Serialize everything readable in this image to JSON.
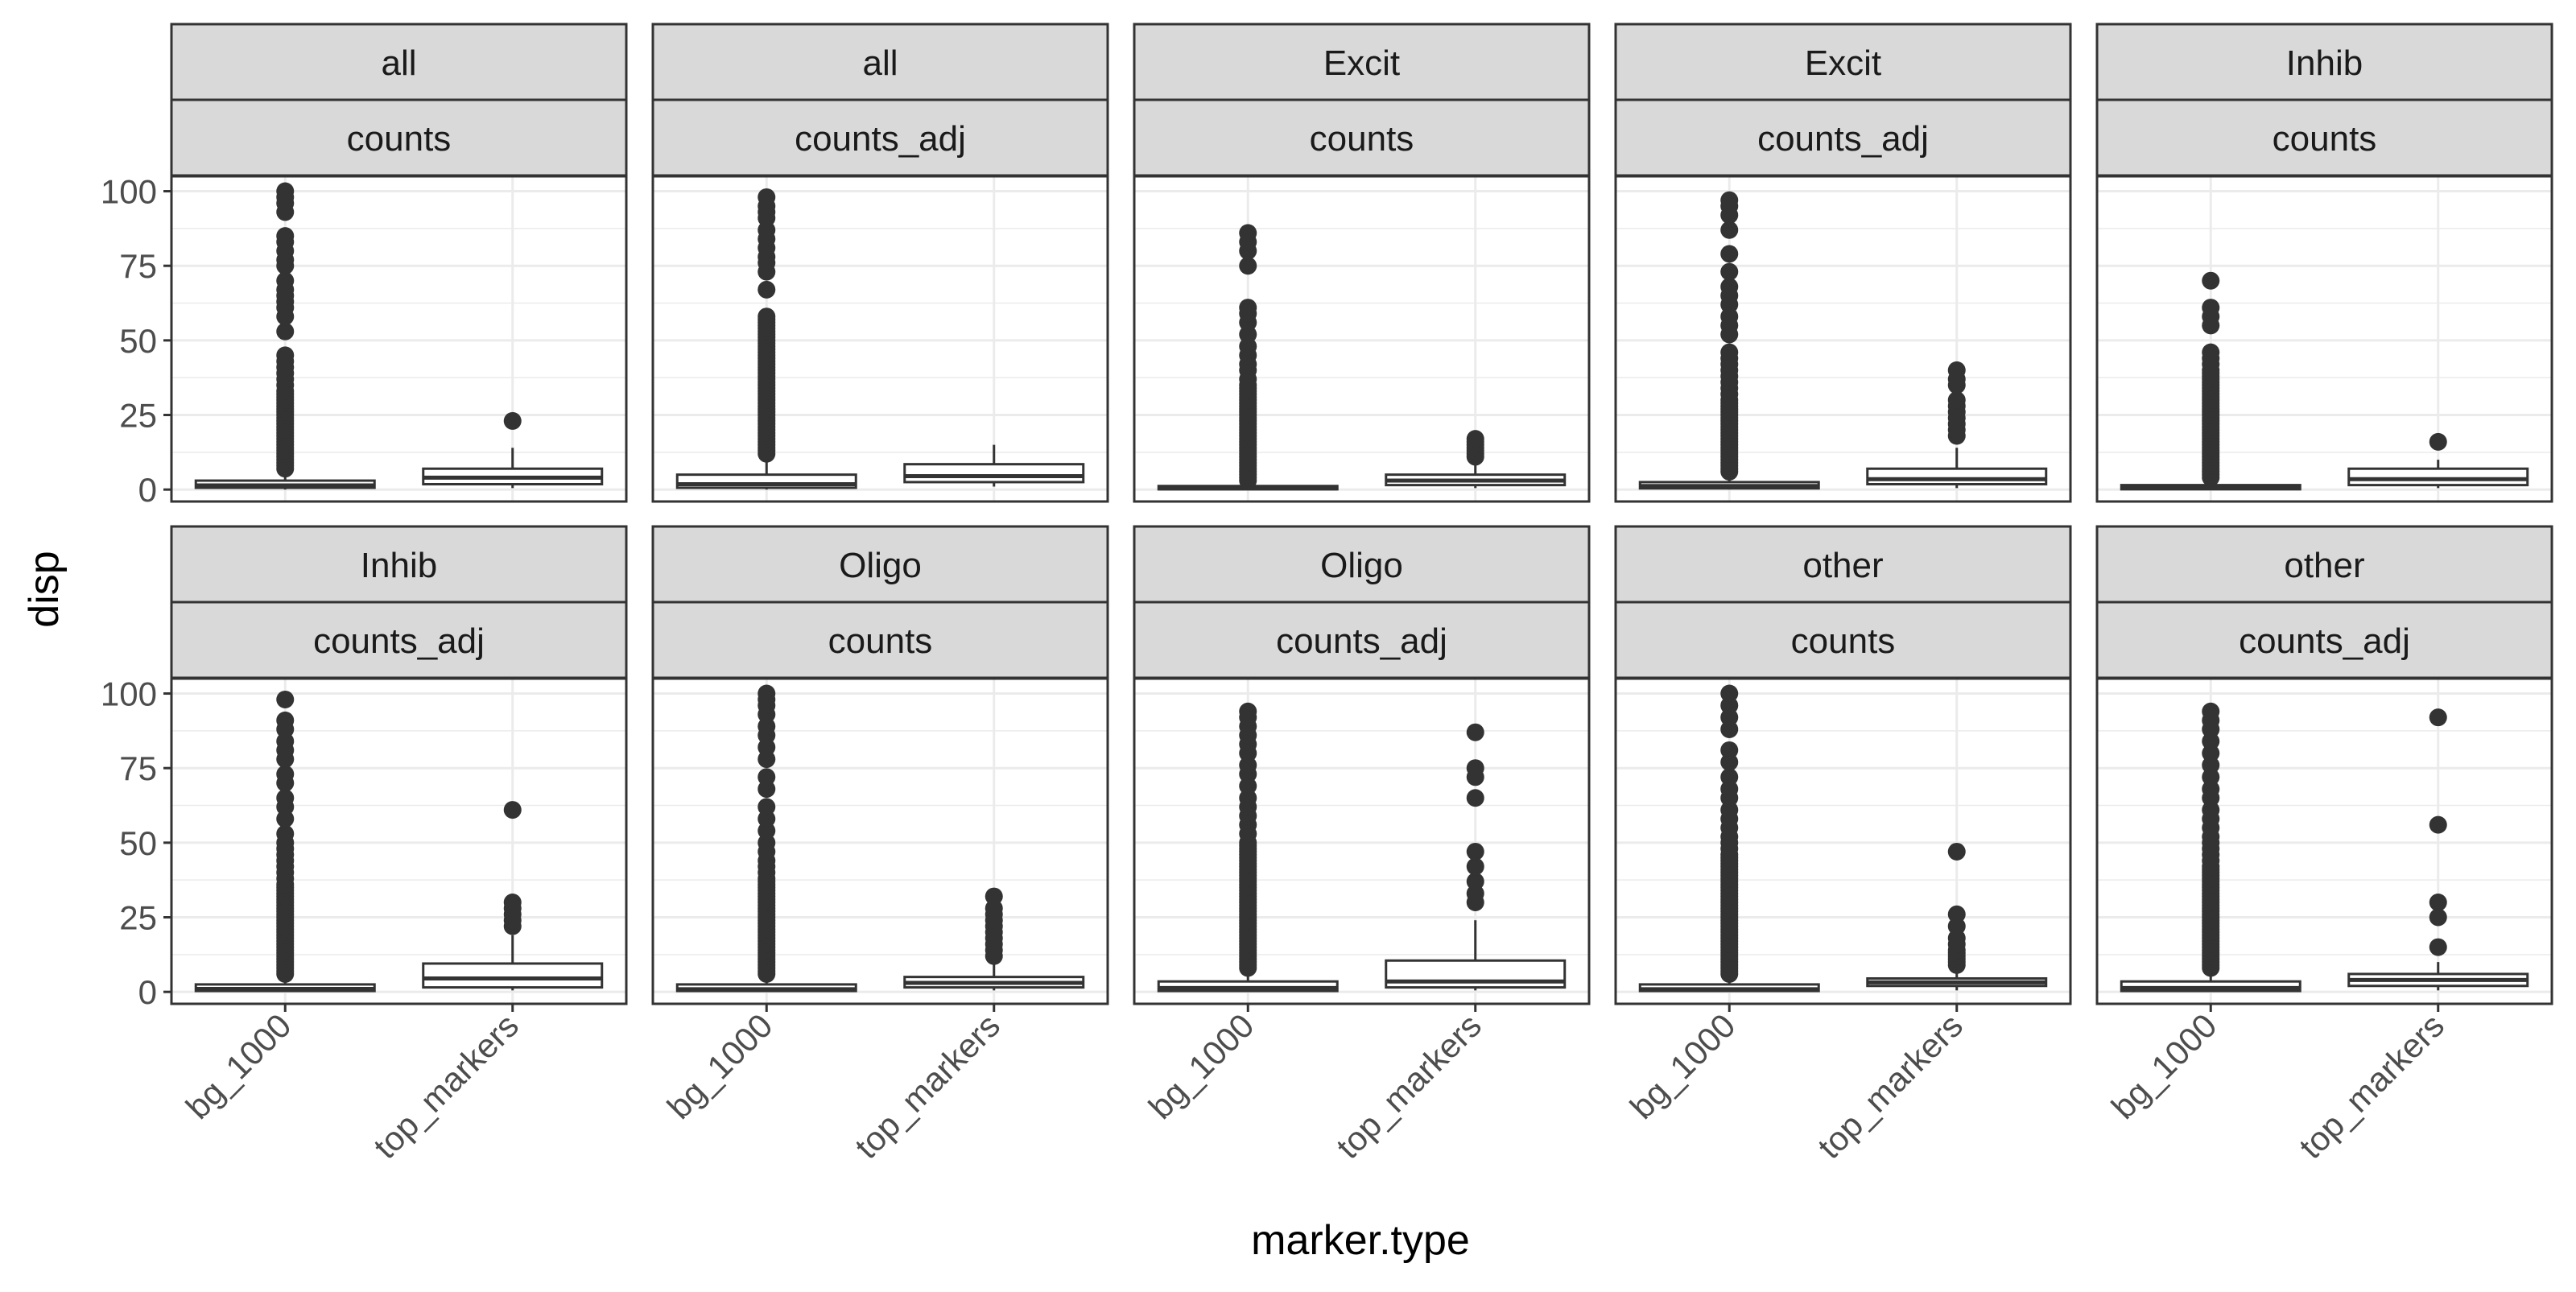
{
  "chart_data": {
    "type": "box",
    "facet_layout": "2 rows x 5 columns",
    "xlabel": "marker.type",
    "ylabel": "disp",
    "x_ticks": [
      "bg_1000",
      "top_markers"
    ],
    "y_ticks": [
      0,
      25,
      50,
      75,
      100
    ],
    "ylim": [
      -4,
      105
    ],
    "grid": true,
    "colors": {
      "strip_fill": "#d9d9d9",
      "box_fill": "#ffffff",
      "stroke": "#333333",
      "grid": "#ebebeb",
      "tick_text": "#4d4d4d"
    },
    "facets": [
      {
        "strip_top": "all",
        "strip_bottom": "counts",
        "boxes": [
          {
            "category": "bg_1000",
            "q1": 0.6,
            "median": 1.4,
            "q3": 3,
            "whisker_low": 0,
            "whisker_high": 6,
            "outliers": [
              7,
              8,
              9,
              10,
              11,
              12,
              13,
              14,
              15,
              16,
              17,
              18,
              19,
              20,
              21,
              22,
              23,
              24,
              25,
              26,
              27,
              28,
              29,
              30,
              31,
              32,
              33,
              35,
              37,
              39,
              41,
              43,
              45,
              53,
              58,
              61,
              63,
              65,
              67,
              70,
              75,
              77,
              80,
              83,
              85,
              93,
              96,
              98,
              100
            ]
          },
          {
            "category": "top_markers",
            "q1": 1.8,
            "median": 4,
            "q3": 7,
            "whisker_low": 0.5,
            "whisker_high": 14,
            "outliers": [
              23
            ]
          }
        ]
      },
      {
        "strip_top": "all",
        "strip_bottom": "counts_adj",
        "boxes": [
          {
            "category": "bg_1000",
            "q1": 0.6,
            "median": 1.8,
            "q3": 5,
            "whisker_low": 0,
            "whisker_high": 11.5,
            "outliers": [
              12,
              13,
              14,
              15,
              16,
              17,
              18,
              19,
              20,
              21,
              22,
              23,
              24,
              25,
              26,
              27,
              28,
              29,
              30,
              31,
              32,
              33,
              34,
              35,
              36,
              37,
              38,
              39,
              40,
              41,
              42,
              43,
              44,
              45,
              46,
              47,
              48,
              49,
              50,
              51,
              52,
              53,
              54,
              55,
              56,
              57,
              58,
              67,
              73,
              76,
              78,
              81,
              84,
              87,
              91,
              93,
              95,
              98
            ]
          },
          {
            "category": "top_markers",
            "q1": 2.5,
            "median": 4.5,
            "q3": 8.5,
            "whisker_low": 1,
            "whisker_high": 15,
            "outliers": []
          }
        ]
      },
      {
        "strip_top": "Excit",
        "strip_bottom": "counts",
        "boxes": [
          {
            "category": "bg_1000",
            "q1": 0.1,
            "median": 0.4,
            "q3": 1.2,
            "whisker_low": 0,
            "whisker_high": 2.5,
            "outliers": [
              3,
              4,
              5,
              6,
              7,
              8,
              9,
              10,
              11,
              12,
              13,
              14,
              15,
              16,
              17,
              18,
              19,
              20,
              21,
              22,
              23,
              24,
              25,
              26,
              27,
              28,
              29,
              30,
              31,
              32,
              33,
              34,
              35,
              37,
              40,
              42,
              45,
              48,
              52,
              56,
              59,
              61,
              75,
              80,
              83,
              86
            ]
          },
          {
            "category": "top_markers",
            "q1": 1.5,
            "median": 3,
            "q3": 5,
            "whisker_low": 0.5,
            "whisker_high": 10,
            "outliers": [
              11,
              12,
              13,
              14,
              15,
              16,
              17
            ]
          }
        ]
      },
      {
        "strip_top": "Excit",
        "strip_bottom": "counts_adj",
        "boxes": [
          {
            "category": "bg_1000",
            "q1": 0.4,
            "median": 1.2,
            "q3": 2.5,
            "whisker_low": 0,
            "whisker_high": 5.5,
            "outliers": [
              6,
              7,
              8,
              9,
              10,
              11,
              12,
              13,
              14,
              15,
              16,
              17,
              18,
              19,
              20,
              21,
              22,
              23,
              24,
              25,
              26,
              27,
              28,
              29,
              30,
              32,
              34,
              36,
              38,
              40,
              42,
              44,
              46,
              52,
              55,
              58,
              62,
              65,
              68,
              73,
              79,
              87,
              92,
              95,
              97
            ]
          },
          {
            "category": "top_markers",
            "q1": 1.8,
            "median": 3.5,
            "q3": 7,
            "whisker_low": 0.5,
            "whisker_high": 14,
            "outliers": [
              18,
              20,
              22,
              24,
              26,
              28,
              30,
              35,
              37,
              40
            ]
          }
        ]
      },
      {
        "strip_top": "Inhib",
        "strip_bottom": "counts",
        "boxes": [
          {
            "category": "bg_1000",
            "q1": 0.1,
            "median": 0.5,
            "q3": 1.5,
            "whisker_low": 0,
            "whisker_high": 3,
            "outliers": [
              4,
              5,
              6,
              7,
              8,
              9,
              10,
              11,
              12,
              13,
              14,
              15,
              16,
              17,
              18,
              19,
              20,
              21,
              22,
              23,
              24,
              25,
              26,
              27,
              28,
              29,
              30,
              31,
              32,
              33,
              34,
              35,
              36,
              37,
              38,
              39,
              40,
              42,
              44,
              46,
              55,
              58,
              61,
              70
            ]
          },
          {
            "category": "top_markers",
            "q1": 1.5,
            "median": 3.5,
            "q3": 7,
            "whisker_low": 0.5,
            "whisker_high": 10,
            "outliers": [
              16
            ]
          }
        ]
      },
      {
        "strip_top": "Inhib",
        "strip_bottom": "counts_adj",
        "boxes": [
          {
            "category": "bg_1000",
            "q1": 0.3,
            "median": 1,
            "q3": 2.5,
            "whisker_low": 0,
            "whisker_high": 5,
            "outliers": [
              6,
              7,
              8,
              9,
              10,
              11,
              12,
              13,
              14,
              15,
              16,
              17,
              18,
              19,
              20,
              21,
              22,
              23,
              24,
              25,
              26,
              27,
              28,
              29,
              30,
              31,
              32,
              33,
              34,
              35,
              36,
              38,
              40,
              42,
              44,
              46,
              48,
              50,
              53,
              58,
              62,
              65,
              70,
              73,
              78,
              81,
              84,
              88,
              91,
              98
            ]
          },
          {
            "category": "top_markers",
            "q1": 1.5,
            "median": 4.5,
            "q3": 9.5,
            "whisker_low": 0.5,
            "whisker_high": 19,
            "outliers": [
              22,
              24,
              26,
              28,
              30,
              61
            ]
          }
        ]
      },
      {
        "strip_top": "Oligo",
        "strip_bottom": "counts",
        "boxes": [
          {
            "category": "bg_1000",
            "q1": 0.3,
            "median": 0.9,
            "q3": 2.5,
            "whisker_low": 0,
            "whisker_high": 5,
            "outliers": [
              6,
              7,
              8,
              9,
              10,
              11,
              12,
              13,
              14,
              15,
              16,
              17,
              18,
              19,
              20,
              21,
              22,
              23,
              24,
              25,
              26,
              27,
              28,
              29,
              30,
              31,
              32,
              33,
              34,
              35,
              36,
              37,
              38,
              40,
              42,
              44,
              47,
              50,
              54,
              58,
              62,
              68,
              72,
              78,
              82,
              86,
              89,
              93,
              96,
              98,
              100
            ]
          },
          {
            "category": "top_markers",
            "q1": 1.5,
            "median": 3,
            "q3": 5,
            "whisker_low": 0.5,
            "whisker_high": 10,
            "outliers": [
              12,
              14,
              16,
              18,
              20,
              22,
              24,
              26,
              28,
              32
            ]
          }
        ]
      },
      {
        "strip_top": "Oligo",
        "strip_bottom": "counts_adj",
        "boxes": [
          {
            "category": "bg_1000",
            "q1": 0.3,
            "median": 1.3,
            "q3": 3.5,
            "whisker_low": 0,
            "whisker_high": 7.5,
            "outliers": [
              8,
              9,
              10,
              11,
              12,
              13,
              14,
              15,
              16,
              17,
              18,
              19,
              20,
              21,
              22,
              23,
              24,
              25,
              26,
              27,
              28,
              29,
              30,
              31,
              32,
              33,
              34,
              35,
              36,
              37,
              38,
              39,
              40,
              41,
              42,
              43,
              44,
              45,
              46,
              47,
              48,
              49,
              50,
              53,
              56,
              59,
              62,
              65,
              69,
              73,
              76,
              80,
              83,
              86,
              89,
              92,
              94
            ]
          },
          {
            "category": "top_markers",
            "q1": 1.5,
            "median": 3.5,
            "q3": 10.5,
            "whisker_low": 0.5,
            "whisker_high": 24,
            "outliers": [
              30,
              33,
              37,
              42,
              47,
              65,
              72,
              75,
              87
            ]
          }
        ]
      },
      {
        "strip_top": "other",
        "strip_bottom": "counts",
        "boxes": [
          {
            "category": "bg_1000",
            "q1": 0.3,
            "median": 0.9,
            "q3": 2.5,
            "whisker_low": 0,
            "whisker_high": 5.5,
            "outliers": [
              6,
              7,
              8,
              9,
              10,
              11,
              12,
              13,
              14,
              15,
              16,
              17,
              18,
              19,
              20,
              21,
              22,
              23,
              24,
              25,
              26,
              27,
              28,
              29,
              30,
              31,
              32,
              33,
              34,
              35,
              36,
              37,
              38,
              39,
              40,
              41,
              42,
              43,
              44,
              45,
              46,
              48,
              50,
              52,
              55,
              58,
              61,
              65,
              68,
              72,
              77,
              81,
              88,
              92,
              96,
              100
            ]
          },
          {
            "category": "top_markers",
            "q1": 2,
            "median": 3.2,
            "q3": 4.5,
            "whisker_low": 0.5,
            "whisker_high": 8,
            "outliers": [
              9,
              10,
              11,
              12,
              13,
              14,
              16,
              18,
              22,
              26,
              47
            ]
          }
        ]
      },
      {
        "strip_top": "other",
        "strip_bottom": "counts_adj",
        "boxes": [
          {
            "category": "bg_1000",
            "q1": 0.3,
            "median": 1.3,
            "q3": 3.5,
            "whisker_low": 0,
            "whisker_high": 7,
            "outliers": [
              8,
              9,
              10,
              11,
              12,
              13,
              14,
              15,
              16,
              17,
              18,
              19,
              20,
              21,
              22,
              23,
              24,
              25,
              26,
              27,
              28,
              29,
              30,
              31,
              32,
              33,
              34,
              35,
              36,
              37,
              38,
              39,
              40,
              41,
              42,
              44,
              46,
              48,
              50,
              52,
              55,
              58,
              61,
              65,
              68,
              72,
              76,
              80,
              84,
              88,
              91,
              94
            ]
          },
          {
            "category": "top_markers",
            "q1": 2,
            "median": 4,
            "q3": 6,
            "whisker_low": 0.5,
            "whisker_high": 10,
            "outliers": [
              15,
              25,
              30,
              56,
              92
            ]
          }
        ]
      }
    ]
  }
}
